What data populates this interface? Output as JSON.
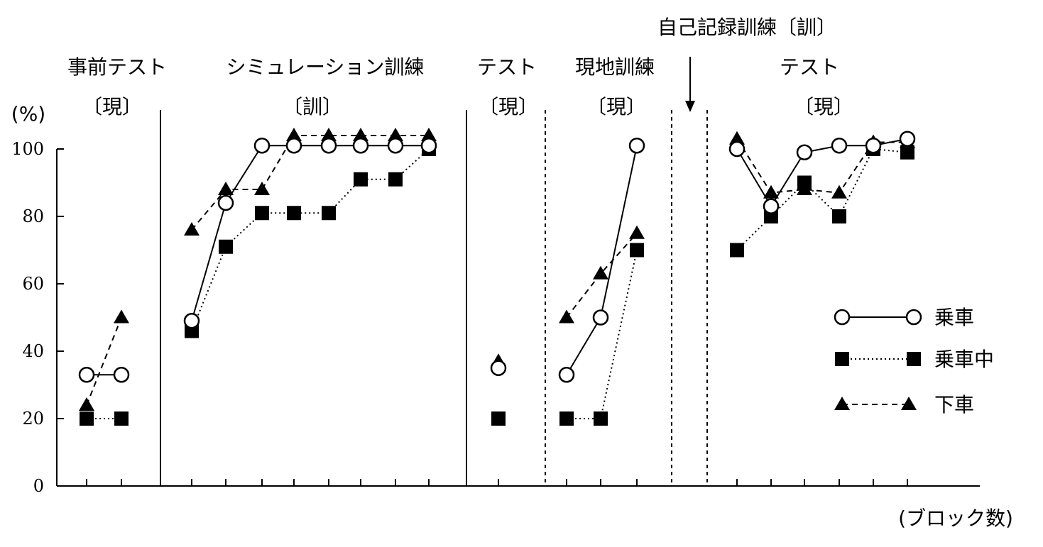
{
  "chart_data": {
    "type": "line",
    "ylabel": "(%)",
    "xlabel": "(ブロック数)",
    "ylim": [
      0,
      100
    ],
    "yticks": [
      "0",
      "20",
      "40",
      "60",
      "80",
      "100"
    ],
    "annotation": "自己記録訓練〔訓〕",
    "phases": [
      {
        "name": "事前テスト",
        "tag": "〔現〕"
      },
      {
        "name": "シミュレーション訓練",
        "tag": "〔訓〕"
      },
      {
        "name": "テスト",
        "tag": "〔現〕"
      },
      {
        "name": "現地訓練",
        "tag": "〔現〕"
      },
      {
        "name": "テスト",
        "tag": "〔現〕"
      }
    ],
    "series": [
      {
        "name": "乗車",
        "marker": "circle",
        "line": "solid",
        "segments": [
          [
            {
              "x": 1,
              "y": 33
            },
            {
              "x": 2,
              "y": 33
            }
          ],
          [
            {
              "x": 3,
              "y": 49
            },
            {
              "x": 4,
              "y": 84
            },
            {
              "x": 5,
              "y": 101
            },
            {
              "x": 6,
              "y": 101
            },
            {
              "x": 7,
              "y": 101
            },
            {
              "x": 8,
              "y": 101
            },
            {
              "x": 9,
              "y": 101
            },
            {
              "x": 10,
              "y": 101
            }
          ],
          [
            {
              "x": 11,
              "y": 35
            }
          ],
          [
            {
              "x": 12,
              "y": 33
            },
            {
              "x": 13,
              "y": 50
            },
            {
              "x": 14,
              "y": 101
            }
          ],
          [
            {
              "x": 15,
              "y": 100
            },
            {
              "x": 16,
              "y": 83
            },
            {
              "x": 17,
              "y": 99
            },
            {
              "x": 18,
              "y": 101
            },
            {
              "x": 19,
              "y": 101
            },
            {
              "x": 20,
              "y": 103
            }
          ]
        ]
      },
      {
        "name": "乗車中",
        "marker": "square",
        "line": "dotted",
        "segments": [
          [
            {
              "x": 1,
              "y": 20
            },
            {
              "x": 2,
              "y": 20
            }
          ],
          [
            {
              "x": 3,
              "y": 46
            },
            {
              "x": 4,
              "y": 71
            },
            {
              "x": 5,
              "y": 81
            },
            {
              "x": 6,
              "y": 81
            },
            {
              "x": 7,
              "y": 81
            },
            {
              "x": 8,
              "y": 91
            },
            {
              "x": 9,
              "y": 91
            },
            {
              "x": 10,
              "y": 100
            }
          ],
          [
            {
              "x": 11,
              "y": 20
            }
          ],
          [
            {
              "x": 12,
              "y": 20
            },
            {
              "x": 13,
              "y": 20
            },
            {
              "x": 14,
              "y": 70
            }
          ],
          [
            {
              "x": 15,
              "y": 70
            },
            {
              "x": 16,
              "y": 80
            },
            {
              "x": 17,
              "y": 90
            },
            {
              "x": 18,
              "y": 80
            },
            {
              "x": 19,
              "y": 100
            },
            {
              "x": 20,
              "y": 99
            }
          ]
        ]
      },
      {
        "name": "下車",
        "marker": "triangle",
        "line": "dashed",
        "segments": [
          [
            {
              "x": 1,
              "y": 24
            },
            {
              "x": 2,
              "y": 50
            }
          ],
          [
            {
              "x": 3,
              "y": 76
            },
            {
              "x": 4,
              "y": 88
            },
            {
              "x": 5,
              "y": 88
            },
            {
              "x": 6,
              "y": 104
            },
            {
              "x": 7,
              "y": 104
            },
            {
              "x": 8,
              "y": 104
            },
            {
              "x": 9,
              "y": 104
            },
            {
              "x": 10,
              "y": 104
            }
          ],
          [
            {
              "x": 11,
              "y": 37
            }
          ],
          [
            {
              "x": 12,
              "y": 50
            },
            {
              "x": 13,
              "y": 63
            },
            {
              "x": 14,
              "y": 75
            }
          ],
          [
            {
              "x": 15,
              "y": 103
            },
            {
              "x": 16,
              "y": 87
            },
            {
              "x": 17,
              "y": 88
            },
            {
              "x": 18,
              "y": 87
            },
            {
              "x": 19,
              "y": 102
            },
            {
              "x": 20,
              "y": 102
            }
          ]
        ]
      }
    ],
    "legend_position": "right"
  }
}
